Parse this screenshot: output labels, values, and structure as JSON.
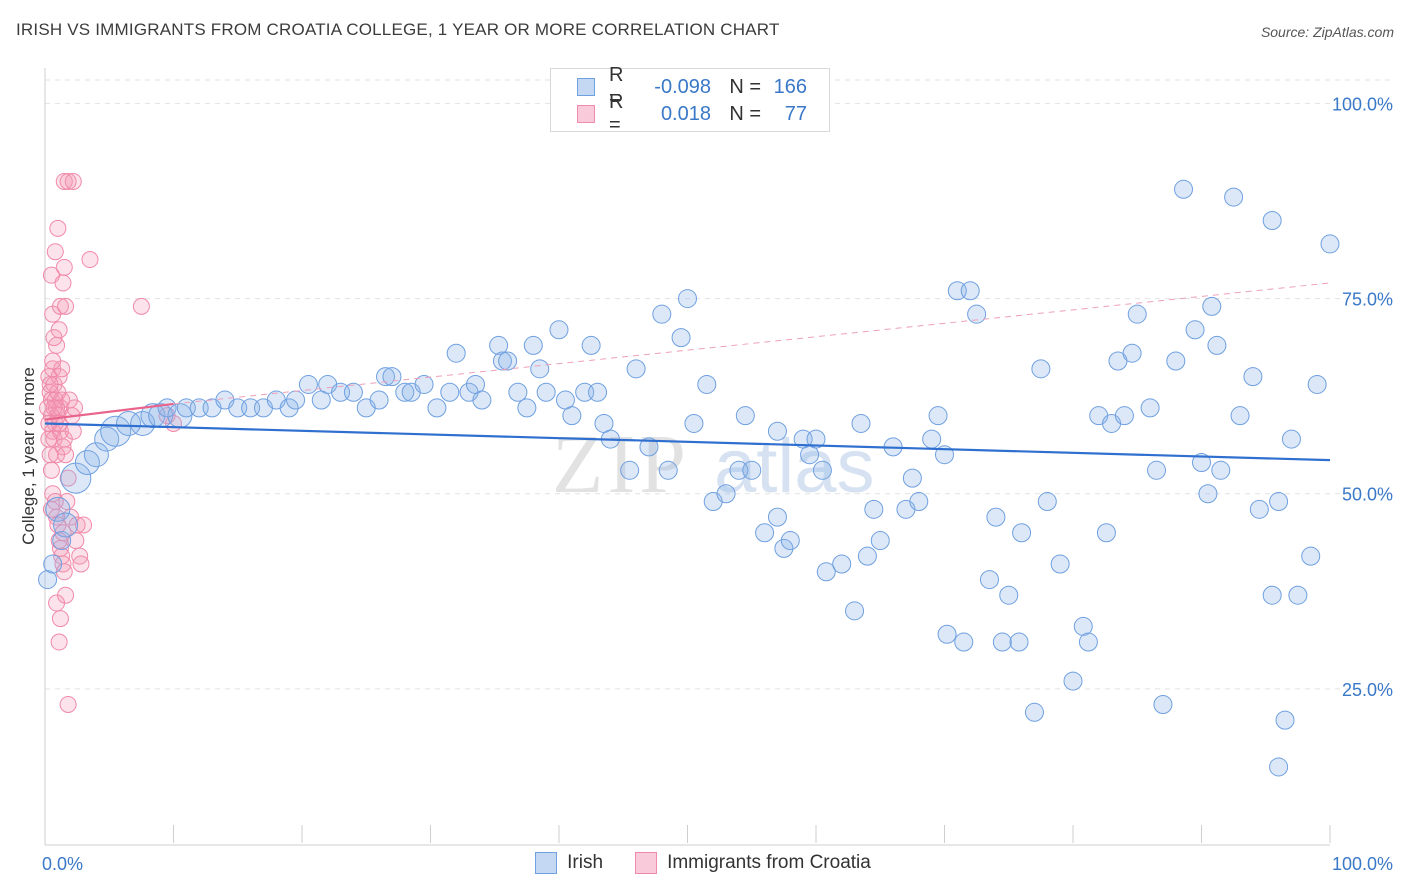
{
  "title": "IRISH VS IMMIGRANTS FROM CROATIA COLLEGE, 1 YEAR OR MORE CORRELATION CHART",
  "source": "Source: ZipAtlas.com",
  "watermark": {
    "zip": "ZIP",
    "atlas": "atlas"
  },
  "legend_top": [
    {
      "r_label": "R =",
      "r_value": "-0.098",
      "n_label": "N =",
      "n_value": "166",
      "color": "#6fa0e0"
    },
    {
      "r_label": "R =",
      "r_value": "0.018",
      "n_label": "N =",
      "n_value": "77",
      "color": "#f08aaa"
    }
  ],
  "legend_bottom": [
    {
      "label": "Irish",
      "color": "#6fa0e0"
    },
    {
      "label": "Immigrants from Croatia",
      "color": "#f08aaa"
    }
  ],
  "chart_data": {
    "type": "scatter",
    "title": "IRISH VS IMMIGRANTS FROM CROATIA COLLEGE, 1 YEAR OR MORE CORRELATION CHART",
    "xlabel": "",
    "ylabel": "College, 1 year or more",
    "xlim": [
      0,
      100
    ],
    "ylim": [
      5,
      103
    ],
    "x_tick_labels": [
      "0.0%",
      "100.0%"
    ],
    "y_ticks": [
      25,
      50,
      75,
      100
    ],
    "y_tick_labels": [
      "25.0%",
      "50.0%",
      "75.0%",
      "100.0%"
    ],
    "grid": true,
    "legend_placement": "bottom-center",
    "colors": {
      "irish": "#6fa0e0",
      "croatia": "#f08aaa",
      "irish_line": "#2f6fcf",
      "croatia_line": "#e8648c",
      "axis_label": "#3a78c8"
    },
    "series": [
      {
        "name": "Irish",
        "trend": {
          "x0": 0,
          "y0": 59.0,
          "x1": 100,
          "y1": 54.3
        },
        "points": [
          [
            0.2,
            39,
            1
          ],
          [
            0.6,
            41,
            1
          ],
          [
            1,
            48,
            2
          ],
          [
            1.3,
            44,
            1
          ],
          [
            1.6,
            46,
            2
          ],
          [
            2.4,
            52,
            3
          ],
          [
            3.3,
            54,
            2
          ],
          [
            4,
            55,
            2
          ],
          [
            4.8,
            57,
            2
          ],
          [
            5.5,
            58,
            3
          ],
          [
            6.5,
            59,
            2
          ],
          [
            7.6,
            59,
            2
          ],
          [
            8.4,
            60,
            2
          ],
          [
            9,
            60,
            2
          ],
          [
            9.5,
            61,
            1
          ],
          [
            10.5,
            60,
            2
          ],
          [
            11,
            61,
            1
          ],
          [
            12,
            61,
            1
          ],
          [
            13,
            61,
            1
          ],
          [
            14,
            62,
            1
          ],
          [
            15,
            61,
            1
          ],
          [
            16,
            61,
            1
          ],
          [
            17,
            61,
            1
          ],
          [
            18,
            62,
            1
          ],
          [
            19,
            61,
            1
          ],
          [
            19.5,
            62,
            1
          ],
          [
            20.5,
            64,
            1
          ],
          [
            21.5,
            62,
            1
          ],
          [
            22,
            64,
            1
          ],
          [
            23,
            63,
            1
          ],
          [
            24,
            63,
            1
          ],
          [
            25,
            61,
            1
          ],
          [
            26,
            62,
            1
          ],
          [
            26.5,
            65,
            1
          ],
          [
            27,
            65,
            1
          ],
          [
            28,
            63,
            1
          ],
          [
            28.5,
            63,
            1
          ],
          [
            29.5,
            64,
            1
          ],
          [
            30.5,
            61,
            1
          ],
          [
            31.5,
            63,
            1
          ],
          [
            32,
            68,
            1
          ],
          [
            33,
            63,
            1
          ],
          [
            33.5,
            64,
            1
          ],
          [
            34,
            62,
            1
          ],
          [
            35.3,
            69,
            1
          ],
          [
            35.6,
            67,
            1
          ],
          [
            36,
            67,
            1
          ],
          [
            36.8,
            63,
            1
          ],
          [
            37.5,
            61,
            1
          ],
          [
            38,
            69,
            1
          ],
          [
            38.5,
            66,
            1
          ],
          [
            39,
            63,
            1
          ],
          [
            40,
            71,
            1
          ],
          [
            40.5,
            62,
            1
          ],
          [
            41,
            60,
            1
          ],
          [
            42,
            63,
            1
          ],
          [
            42.5,
            69,
            1
          ],
          [
            43,
            63,
            1
          ],
          [
            43.5,
            59,
            1
          ],
          [
            44,
            57,
            1
          ],
          [
            45.5,
            53,
            1
          ],
          [
            46,
            66,
            1
          ],
          [
            47,
            56,
            1
          ],
          [
            48,
            73,
            1
          ],
          [
            48.5,
            53,
            1
          ],
          [
            49.5,
            70,
            1
          ],
          [
            50,
            75,
            1
          ],
          [
            50.5,
            59,
            1
          ],
          [
            51.5,
            64,
            1
          ],
          [
            52,
            49,
            1
          ],
          [
            53,
            50,
            1
          ],
          [
            54,
            53,
            1
          ],
          [
            54.5,
            60,
            1
          ],
          [
            55,
            53,
            1
          ],
          [
            56,
            45,
            1
          ],
          [
            57,
            47,
            1
          ],
          [
            57.5,
            43,
            1
          ],
          [
            58,
            44,
            1
          ],
          [
            59,
            57,
            1
          ],
          [
            59.5,
            55,
            1
          ],
          [
            60,
            57,
            1
          ],
          [
            60.5,
            53,
            1
          ],
          [
            60.8,
            40,
            1
          ],
          [
            62,
            41,
            1
          ],
          [
            63,
            35,
            1
          ],
          [
            63.5,
            59,
            1
          ],
          [
            64,
            42,
            1
          ],
          [
            64.5,
            48,
            1
          ],
          [
            65,
            44,
            1
          ],
          [
            66,
            56,
            1
          ],
          [
            67,
            48,
            1
          ],
          [
            67.5,
            52,
            1
          ],
          [
            68,
            49,
            1
          ],
          [
            69,
            57,
            1
          ],
          [
            69.5,
            60,
            1
          ],
          [
            70,
            55,
            1
          ],
          [
            70.2,
            32,
            1
          ],
          [
            71,
            76,
            1
          ],
          [
            71.5,
            31,
            1
          ],
          [
            72,
            76,
            1
          ],
          [
            72.5,
            73,
            1
          ],
          [
            73.5,
            39,
            1
          ],
          [
            74,
            47,
            1
          ],
          [
            74.5,
            31,
            1
          ],
          [
            75,
            37,
            1
          ],
          [
            75.8,
            31,
            1
          ],
          [
            76,
            45,
            1
          ],
          [
            77,
            22,
            1
          ],
          [
            77.5,
            66,
            1
          ],
          [
            78,
            49,
            1
          ],
          [
            79,
            41,
            1
          ],
          [
            80,
            26,
            1
          ],
          [
            80.8,
            33,
            1
          ],
          [
            81.2,
            31,
            1
          ],
          [
            82,
            60,
            1
          ],
          [
            82.6,
            45,
            1
          ],
          [
            83,
            59,
            1
          ],
          [
            83.5,
            67,
            1
          ],
          [
            84,
            60,
            1
          ],
          [
            84.6,
            68,
            1
          ],
          [
            85,
            73,
            1
          ],
          [
            86,
            61,
            1
          ],
          [
            86.5,
            53,
            1
          ],
          [
            87,
            23,
            1
          ],
          [
            88,
            67,
            1
          ],
          [
            88.6,
            89,
            1
          ],
          [
            89.5,
            71,
            1
          ],
          [
            90,
            54,
            1
          ],
          [
            90.5,
            50,
            1
          ],
          [
            90.8,
            74,
            1
          ],
          [
            91.2,
            69,
            1
          ],
          [
            91.5,
            53,
            1
          ],
          [
            92.5,
            88,
            1
          ],
          [
            93,
            60,
            1
          ],
          [
            94,
            65,
            1
          ],
          [
            94.5,
            48,
            1
          ],
          [
            95.5,
            85,
            1
          ],
          [
            96,
            15,
            1
          ],
          [
            97,
            57,
            1
          ],
          [
            97.5,
            37,
            1
          ],
          [
            98.5,
            42,
            1
          ],
          [
            100,
            82,
            1
          ],
          [
            95.5,
            37,
            1
          ],
          [
            96.5,
            21,
            1
          ],
          [
            96,
            49,
            1
          ],
          [
            99,
            64,
            1
          ],
          [
            57,
            58,
            1
          ]
        ]
      },
      {
        "name": "Immigrants from Croatia",
        "trend": {
          "x0": 0,
          "y0": 59.5,
          "x1": 10,
          "y1": 61.5,
          "x2": 100,
          "y2": 77
        },
        "points": [
          [
            0.3,
            65,
            1
          ],
          [
            0.4,
            63,
            1
          ],
          [
            0.5,
            62,
            1
          ],
          [
            0.5,
            60,
            1
          ],
          [
            0.6,
            66,
            1
          ],
          [
            0.6,
            58,
            1
          ],
          [
            0.7,
            64,
            1
          ],
          [
            0.7,
            57,
            1
          ],
          [
            0.8,
            62,
            1
          ],
          [
            0.8,
            59,
            1
          ],
          [
            0.9,
            61,
            1
          ],
          [
            0.9,
            55,
            1
          ],
          [
            1,
            60,
            1
          ],
          [
            1,
            63,
            1
          ],
          [
            1.1,
            65,
            1
          ],
          [
            1.1,
            59,
            1
          ],
          [
            1.2,
            61,
            1
          ],
          [
            1.2,
            58,
            1
          ],
          [
            1.3,
            62,
            1
          ],
          [
            1.4,
            56,
            1
          ],
          [
            0.5,
            78,
            1
          ],
          [
            0.6,
            73,
            1
          ],
          [
            0.8,
            81,
            1
          ],
          [
            0.9,
            69,
            1
          ],
          [
            1,
            84,
            1
          ],
          [
            1.1,
            71,
            1
          ],
          [
            1.2,
            74,
            1
          ],
          [
            1.4,
            77,
            1
          ],
          [
            1.5,
            79,
            1
          ],
          [
            1.6,
            74,
            1
          ],
          [
            1.5,
            90,
            1
          ],
          [
            1.8,
            90,
            1
          ],
          [
            2.2,
            90,
            1
          ],
          [
            3.5,
            80,
            1
          ],
          [
            7.5,
            74,
            1
          ],
          [
            0.5,
            53,
            1
          ],
          [
            0.6,
            50,
            1
          ],
          [
            0.8,
            49,
            1
          ],
          [
            0.9,
            47,
            1
          ],
          [
            1,
            46,
            1
          ],
          [
            1.1,
            44,
            1
          ],
          [
            1.2,
            43,
            1
          ],
          [
            1.3,
            42,
            1
          ],
          [
            1.4,
            41,
            1
          ],
          [
            1.5,
            40,
            1
          ],
          [
            0.9,
            36,
            1
          ],
          [
            1.2,
            34,
            1
          ],
          [
            1.1,
            31,
            1
          ],
          [
            1.6,
            37,
            1
          ],
          [
            1.8,
            23,
            1
          ],
          [
            2,
            47,
            1
          ],
          [
            2.5,
            46,
            1
          ],
          [
            2.7,
            42,
            1
          ],
          [
            2.8,
            41,
            1
          ],
          [
            3,
            46,
            1
          ],
          [
            1.7,
            49,
            1
          ],
          [
            1.8,
            52,
            1
          ],
          [
            1.5,
            57,
            1
          ],
          [
            1.6,
            55,
            1
          ],
          [
            2.1,
            60,
            1
          ],
          [
            2.3,
            61,
            1
          ],
          [
            0.7,
            70,
            1
          ],
          [
            1.3,
            66,
            1
          ],
          [
            1.9,
            62,
            1
          ],
          [
            2.2,
            58,
            1
          ],
          [
            0.4,
            55,
            1
          ],
          [
            0.3,
            57,
            1
          ],
          [
            0.5,
            48,
            1
          ],
          [
            1.4,
            45,
            1
          ],
          [
            2.4,
            44,
            1
          ],
          [
            9.5,
            60,
            1
          ],
          [
            10,
            59,
            1
          ],
          [
            0.2,
            61,
            1
          ],
          [
            0.3,
            59,
            1
          ],
          [
            0.4,
            64,
            1
          ],
          [
            0.6,
            67,
            1
          ],
          [
            0.7,
            61,
            1
          ]
        ]
      }
    ]
  }
}
